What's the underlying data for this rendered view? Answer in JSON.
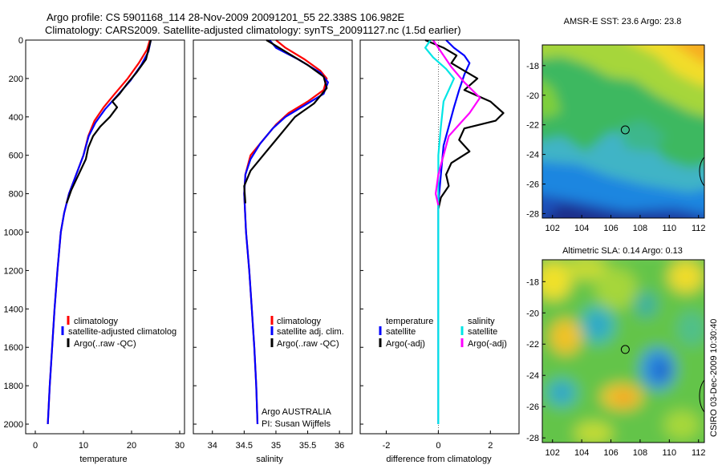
{
  "header": {
    "line1": "Argo profile: CS 5901168_114 28-Nov-2009 20091201_55 22.338S 106.982E",
    "line2": "Climatology: CARS2009. Satellite-adjusted climatology: synTS_20091127.nc (1.5d earlier)"
  },
  "side_text": "CSIRO 03-Dec-2009 10:30:40",
  "colors": {
    "climatology": "#ff0000",
    "satellite": "#0000ff",
    "argo": "#000000",
    "sal_satellite": "#00e5e5",
    "sal_argo": "#ff00ff"
  },
  "chart_data": [
    {
      "id": "temperature",
      "type": "line",
      "xlabel": "temperature",
      "xlim": [
        -2,
        31
      ],
      "xticks": [
        "0",
        "10",
        "20",
        "30"
      ],
      "ylim": [
        0,
        2050
      ],
      "yticks": [
        "0",
        "200",
        "400",
        "600",
        "800",
        "1000",
        "1200",
        "1400",
        "1600",
        "1800",
        "2000"
      ],
      "y_reversed": true,
      "legend": [
        "climatology",
        "satellite-adjusted climatolog",
        "Argo(..raw -QC)"
      ],
      "series": [
        {
          "name": "climatology",
          "color": "#ff0000",
          "points": [
            [
              23.8,
              0
            ],
            [
              23.2,
              50
            ],
            [
              21.5,
              120
            ],
            [
              19.2,
              200
            ],
            [
              16.5,
              280
            ],
            [
              14.2,
              350
            ],
            [
              12.3,
              420
            ],
            [
              11,
              500
            ],
            [
              10,
              600
            ],
            [
              8.5,
              700
            ],
            [
              7,
              800
            ],
            [
              6,
              900
            ],
            [
              5.3,
              1000
            ],
            [
              4.6,
              1200
            ],
            [
              4,
              1400
            ],
            [
              3.5,
              1600
            ],
            [
              3,
              1800
            ],
            [
              2.6,
              2000
            ]
          ]
        },
        {
          "name": "satellite-adjusted climatolog",
          "color": "#0000ff",
          "points": [
            [
              24,
              0
            ],
            [
              23.5,
              60
            ],
            [
              22,
              130
            ],
            [
              19.8,
              210
            ],
            [
              17,
              290
            ],
            [
              14.5,
              360
            ],
            [
              12.5,
              430
            ],
            [
              11.1,
              500
            ],
            [
              10,
              600
            ],
            [
              8.5,
              700
            ],
            [
              7,
              800
            ],
            [
              6,
              900
            ],
            [
              5.3,
              1000
            ],
            [
              4.6,
              1200
            ],
            [
              4,
              1400
            ],
            [
              3.5,
              1600
            ],
            [
              3,
              1800
            ],
            [
              2.6,
              2000
            ]
          ]
        },
        {
          "name": "Argo(..raw -QC)",
          "color": "#000000",
          "points": [
            [
              24,
              0
            ],
            [
              23.6,
              40
            ],
            [
              23,
              100
            ],
            [
              21,
              170
            ],
            [
              19,
              230
            ],
            [
              17.5,
              280
            ],
            [
              16,
              320
            ],
            [
              17,
              350
            ],
            [
              15.5,
              400
            ],
            [
              13.5,
              450
            ],
            [
              12,
              500
            ],
            [
              11,
              560
            ],
            [
              10.5,
              620
            ],
            [
              9,
              700
            ],
            [
              7.5,
              780
            ],
            [
              6.5,
              850
            ]
          ]
        }
      ]
    },
    {
      "id": "salinity",
      "type": "line",
      "xlabel": "salinity",
      "xlim": [
        33.7,
        36.2
      ],
      "xticks": [
        "34",
        "34.5",
        "35",
        "35.5",
        "36"
      ],
      "ylim": [
        0,
        2050
      ],
      "y_reversed": true,
      "legend": [
        "climatology",
        "satellite adj. clim.",
        "Argo(..raw -QC)"
      ],
      "annotation": [
        "Argo AUSTRALIA",
        "PI: Susan Wijffels"
      ],
      "series": [
        {
          "name": "climatology",
          "color": "#ff0000",
          "points": [
            [
              35.0,
              0
            ],
            [
              35.15,
              40
            ],
            [
              35.45,
              100
            ],
            [
              35.7,
              160
            ],
            [
              35.8,
              200
            ],
            [
              35.75,
              260
            ],
            [
              35.5,
              320
            ],
            [
              35.2,
              380
            ],
            [
              35.0,
              440
            ],
            [
              34.8,
              520
            ],
            [
              34.6,
              600
            ],
            [
              34.52,
              700
            ],
            [
              34.5,
              800
            ],
            [
              34.53,
              1000
            ],
            [
              34.58,
              1200
            ],
            [
              34.62,
              1400
            ],
            [
              34.66,
              1600
            ],
            [
              34.69,
              1800
            ],
            [
              34.71,
              2000
            ]
          ]
        },
        {
          "name": "satellite adj. clim.",
          "color": "#0000ff",
          "points": [
            [
              34.9,
              0
            ],
            [
              35.0,
              40
            ],
            [
              35.35,
              100
            ],
            [
              35.7,
              170
            ],
            [
              35.82,
              220
            ],
            [
              35.75,
              280
            ],
            [
              35.45,
              340
            ],
            [
              35.15,
              400
            ],
            [
              34.95,
              460
            ],
            [
              34.75,
              540
            ],
            [
              34.6,
              620
            ],
            [
              34.52,
              700
            ],
            [
              34.5,
              800
            ],
            [
              34.53,
              1000
            ],
            [
              34.58,
              1200
            ],
            [
              34.62,
              1400
            ],
            [
              34.66,
              1600
            ],
            [
              34.69,
              1800
            ],
            [
              34.71,
              2000
            ]
          ]
        },
        {
          "name": "Argo(..raw -QC)",
          "color": "#000000",
          "points": [
            [
              34.85,
              0
            ],
            [
              35.0,
              30
            ],
            [
              35.2,
              70
            ],
            [
              35.5,
              130
            ],
            [
              35.75,
              190
            ],
            [
              35.8,
              250
            ],
            [
              35.6,
              330
            ],
            [
              35.3,
              400
            ],
            [
              35.15,
              460
            ],
            [
              35.0,
              520
            ],
            [
              34.8,
              600
            ],
            [
              34.6,
              680
            ],
            [
              34.5,
              760
            ],
            [
              34.52,
              850
            ]
          ]
        }
      ]
    },
    {
      "id": "difference",
      "type": "line",
      "xlabel": "difference from climatology",
      "xlim": [
        -3,
        3.1
      ],
      "xticks": [
        "-2",
        "0",
        "2"
      ],
      "ylim": [
        0,
        2050
      ],
      "y_reversed": true,
      "legend_titles": [
        "temperature",
        "salinity"
      ],
      "legend": [
        "satellite",
        "Argo(-adj)",
        "satellite",
        "Argo(-adj)"
      ],
      "series": [
        {
          "name": "temperature satellite",
          "color": "#0000ff",
          "points": [
            [
              0.3,
              0
            ],
            [
              0.6,
              40
            ],
            [
              1.0,
              80
            ],
            [
              1.2,
              120
            ],
            [
              1.0,
              180
            ],
            [
              0.8,
              260
            ],
            [
              0.6,
              350
            ],
            [
              0.4,
              450
            ],
            [
              0.2,
              550
            ],
            [
              0.1,
              700
            ],
            [
              0,
              850
            ],
            [
              0,
              1000
            ],
            [
              0,
              1400
            ],
            [
              0,
              1800
            ],
            [
              0,
              2000
            ]
          ]
        },
        {
          "name": "temperature Argo(-adj)",
          "color": "#000000",
          "points": [
            [
              -0.5,
              0
            ],
            [
              0.2,
              40
            ],
            [
              0.7,
              80
            ],
            [
              0.5,
              120
            ],
            [
              1.0,
              160
            ],
            [
              1.5,
              200
            ],
            [
              1.0,
              260
            ],
            [
              2.0,
              320
            ],
            [
              2.5,
              380
            ],
            [
              2.2,
              420
            ],
            [
              1.0,
              460
            ],
            [
              0.8,
              520
            ],
            [
              1.2,
              580
            ],
            [
              0.5,
              640
            ],
            [
              0.3,
              700
            ],
            [
              0.4,
              760
            ],
            [
              0.1,
              820
            ],
            [
              0,
              880
            ]
          ]
        },
        {
          "name": "salinity satellite",
          "color": "#00e5e5",
          "points": [
            [
              -0.3,
              0
            ],
            [
              -0.5,
              40
            ],
            [
              -0.2,
              90
            ],
            [
              0.3,
              150
            ],
            [
              0.6,
              200
            ],
            [
              0.4,
              260
            ],
            [
              0.2,
              320
            ],
            [
              0.1,
              450
            ],
            [
              0,
              600
            ],
            [
              0,
              800
            ],
            [
              0,
              1000
            ],
            [
              0,
              1400
            ],
            [
              0,
              1800
            ],
            [
              0,
              2000
            ]
          ]
        },
        {
          "name": "salinity Argo(-adj)",
          "color": "#ff00ff",
          "points": [
            [
              -0.2,
              0
            ],
            [
              0.1,
              60
            ],
            [
              0.5,
              140
            ],
            [
              1.0,
              220
            ],
            [
              1.6,
              300
            ],
            [
              1.2,
              380
            ],
            [
              0.8,
              440
            ],
            [
              0.4,
              500
            ],
            [
              0.2,
              600
            ],
            [
              0,
              700
            ],
            [
              -0.1,
              800
            ],
            [
              0,
              860
            ]
          ]
        }
      ]
    },
    {
      "id": "sst_map",
      "type": "heatmap",
      "title": "AMSR-E SST: 23.6 Argo: 23.8",
      "xlim": [
        101.3,
        112.4
      ],
      "xticks": [
        "102",
        "104",
        "106",
        "108",
        "110",
        "112"
      ],
      "ylim": [
        -28.3,
        -16.6
      ],
      "yticks": [
        "-18",
        "-20",
        "-22",
        "-24",
        "-26",
        "-28"
      ],
      "marker": [
        106.98,
        -22.34
      ]
    },
    {
      "id": "sla_map",
      "type": "heatmap",
      "title": "Altimetric SLA: 0.14 Argo: 0.13",
      "xlim": [
        101.3,
        112.4
      ],
      "xticks": [
        "102",
        "104",
        "106",
        "108",
        "110",
        "112"
      ],
      "ylim": [
        -28.3,
        -16.6
      ],
      "yticks": [
        "-18",
        "-20",
        "-22",
        "-24",
        "-26",
        "-28"
      ],
      "marker": [
        106.98,
        -22.34
      ]
    }
  ]
}
